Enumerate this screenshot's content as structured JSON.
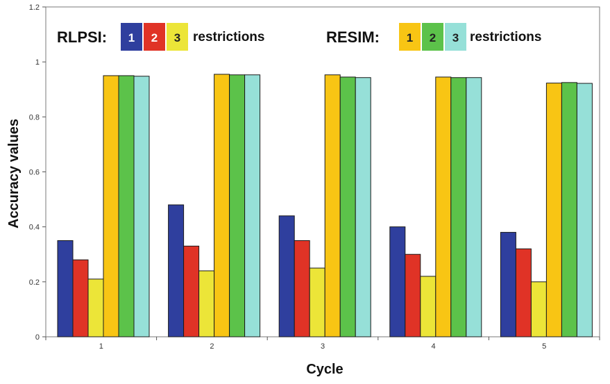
{
  "chart_data": {
    "type": "bar",
    "title": "",
    "xlabel": "Cycle",
    "ylabel": "Accuracy  values",
    "ylim": [
      0,
      1.2
    ],
    "yticks": [
      "0",
      "0.2",
      "0.4",
      "0.6",
      "0.8",
      "1",
      "1.2"
    ],
    "categories": [
      "1",
      "2",
      "3",
      "4",
      "5"
    ],
    "grid": false,
    "series": [
      {
        "group": "RLPSI",
        "name": "1",
        "color": "#2f3f9e",
        "values": [
          0.35,
          0.48,
          0.44,
          0.4,
          0.38
        ]
      },
      {
        "group": "RLPSI",
        "name": "2",
        "color": "#e03326",
        "values": [
          0.28,
          0.33,
          0.35,
          0.3,
          0.32
        ]
      },
      {
        "group": "RLPSI",
        "name": "3",
        "color": "#ece538",
        "values": [
          0.21,
          0.24,
          0.25,
          0.22,
          0.2
        ]
      },
      {
        "group": "RESIM",
        "name": "1",
        "color": "#f8c514",
        "values": [
          0.95,
          0.955,
          0.953,
          0.945,
          0.923
        ]
      },
      {
        "group": "RESIM",
        "name": "2",
        "color": "#5cc24a",
        "values": [
          0.95,
          0.953,
          0.945,
          0.943,
          0.925
        ]
      },
      {
        "group": "RESIM",
        "name": "3",
        "color": "#96e0d8",
        "values": [
          0.948,
          0.953,
          0.943,
          0.943,
          0.922
        ]
      }
    ],
    "legend": {
      "placement": "top",
      "groups": [
        {
          "label": "RLPSI:",
          "suffix": "restrictions",
          "items": [
            {
              "num": "1",
              "color": "#2f3f9e",
              "text_color": "#ffffff"
            },
            {
              "num": "2",
              "color": "#e03326",
              "text_color": "#ffffff"
            },
            {
              "num": "3",
              "color": "#ece538",
              "text_color": "#222222"
            }
          ]
        },
        {
          "label": "RESIM:",
          "suffix": "restrictions",
          "items": [
            {
              "num": "1",
              "color": "#f8c514",
              "text_color": "#222222"
            },
            {
              "num": "2",
              "color": "#5cc24a",
              "text_color": "#222222"
            },
            {
              "num": "3",
              "color": "#96e0d8",
              "text_color": "#222222"
            }
          ]
        }
      ]
    }
  }
}
